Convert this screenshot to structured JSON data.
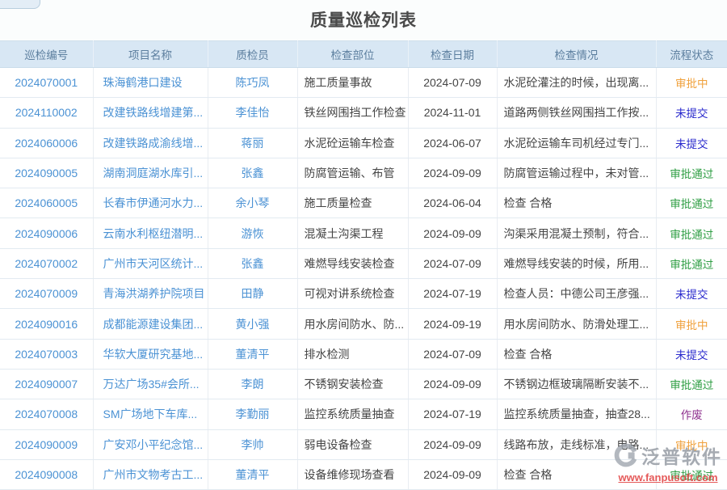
{
  "page": {
    "title": "质量巡检列表"
  },
  "watermark": {
    "brand": "泛普软件",
    "url": "www.fanpusoft.com",
    "logo_icon": "fanpu-logo-icon"
  },
  "status_colors": {
    "pending": "#f0a13c",
    "unsubmitted": "#2a2acd",
    "approved": "#2f9e44",
    "void": "#8e2f8e"
  },
  "table": {
    "columns": [
      {
        "key": "inspection-id",
        "label": "巡检编号"
      },
      {
        "key": "project-name",
        "label": "项目名称"
      },
      {
        "key": "inspector",
        "label": "质检员"
      },
      {
        "key": "inspection-part",
        "label": "检查部位"
      },
      {
        "key": "inspection-date",
        "label": "检查日期"
      },
      {
        "key": "inspection-detail",
        "label": "检查情况"
      },
      {
        "key": "workflow-status",
        "label": "流程状态"
      }
    ],
    "rows": [
      {
        "id": "2024070001",
        "project": "珠海鹤港口建设",
        "inspector": "陈巧凤",
        "part": "施工质量事故",
        "date": "2024-07-09",
        "detail": "水泥砼灌注的时候，出现离...",
        "status": "审批中",
        "status_type": "pending"
      },
      {
        "id": "2024110002",
        "project": "改建铁路线增建第...",
        "inspector": "李佳怡",
        "part": "铁丝网围挡工作检查",
        "date": "2024-11-01",
        "detail": "道路两侧铁丝网围挡工作按...",
        "status": "未提交",
        "status_type": "unsubmitted"
      },
      {
        "id": "2024060006",
        "project": "改建铁路成渝线增...",
        "inspector": "蒋丽",
        "part": "水泥砼运输车检查",
        "date": "2024-06-07",
        "detail": "水泥砼运输车司机经过专门...",
        "status": "未提交",
        "status_type": "unsubmitted"
      },
      {
        "id": "2024090005",
        "project": "湖南洞庭湖水库引...",
        "inspector": "张鑫",
        "part": "防腐管运输、布管",
        "date": "2024-09-09",
        "detail": "防腐管运输过程中，未对管...",
        "status": "审批通过",
        "status_type": "approved"
      },
      {
        "id": "2024060005",
        "project": "长春市伊通河水力...",
        "inspector": "余小琴",
        "part": "施工质量检查",
        "date": "2024-06-04",
        "detail": "检查 合格",
        "status": "审批通过",
        "status_type": "approved"
      },
      {
        "id": "2024090006",
        "project": "云南水利枢纽潜明...",
        "inspector": "游恢",
        "part": "混凝土沟渠工程",
        "date": "2024-09-09",
        "detail": "沟渠采用混凝土预制，符合...",
        "status": "审批通过",
        "status_type": "approved"
      },
      {
        "id": "2024070002",
        "project": "广州市天河区统计...",
        "inspector": "张鑫",
        "part": "难燃导线安装检查",
        "date": "2024-07-09",
        "detail": "难燃导线安装的时候，所用...",
        "status": "审批通过",
        "status_type": "approved"
      },
      {
        "id": "2024070009",
        "project": "青海洪湖养护院项目",
        "inspector": "田静",
        "part": "可视对讲系统检查",
        "date": "2024-07-19",
        "detail": "检查人员：中德公司王彦强...",
        "status": "未提交",
        "status_type": "unsubmitted"
      },
      {
        "id": "2024090016",
        "project": "成都能源建设集团...",
        "inspector": "黄小强",
        "part": "用水房间防水、防...",
        "date": "2024-09-19",
        "detail": "用水房间防水、防滑处理工...",
        "status": "审批中",
        "status_type": "pending"
      },
      {
        "id": "2024070003",
        "project": "华软大厦研究基地...",
        "inspector": "董清平",
        "part": "排水检测",
        "date": "2024-07-09",
        "detail": "检查 合格",
        "status": "未提交",
        "status_type": "unsubmitted"
      },
      {
        "id": "2024090007",
        "project": "万达广场35#会所...",
        "inspector": "李朗",
        "part": "不锈钢安装检查",
        "date": "2024-09-09",
        "detail": "不锈钢边框玻璃隔断安装不...",
        "status": "审批通过",
        "status_type": "approved"
      },
      {
        "id": "2024070008",
        "project": "SM广场地下车库...",
        "inspector": "李勤丽",
        "part": "监控系统质量抽查",
        "date": "2024-07-19",
        "detail": "监控系统质量抽查，抽查28...",
        "status": "作废",
        "status_type": "void"
      },
      {
        "id": "2024090009",
        "project": "广安邓小平纪念馆...",
        "inspector": "李帅",
        "part": "弱电设备检查",
        "date": "2024-09-09",
        "detail": "线路布放，走线标准，电路...",
        "status": "审批中",
        "status_type": "pending"
      },
      {
        "id": "2024090008",
        "project": "广州市文物考古工...",
        "inspector": "董清平",
        "part": "设备维修现场查看",
        "date": "2024-09-09",
        "detail": "检查 合格",
        "status": "审批通过",
        "status_type": "approved"
      }
    ]
  }
}
